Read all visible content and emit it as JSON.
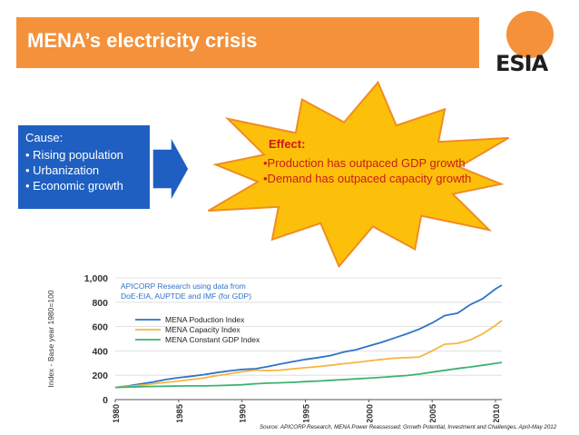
{
  "header": {
    "title": "MENA’s electricity crisis"
  },
  "logo": {
    "text": "ESIA"
  },
  "cause": {
    "title": "Cause:",
    "items": [
      "Rising population",
      "Urbanization",
      "Economic growth"
    ]
  },
  "effect": {
    "title": "Effect:",
    "lines": [
      "•Production has outpaced GDP growth",
      "•Demand has outpaced capacity growth"
    ]
  },
  "colors": {
    "orange": "#f4913a",
    "blue_box": "#1f5fc1",
    "star_fill": "#fcc00a",
    "star_stroke": "#f08c22",
    "effect_text": "#cc1a1a",
    "production": "#2f73c8",
    "capacity": "#f7b63f",
    "gdp": "#3cb371"
  },
  "chart_data": {
    "type": "line",
    "annotation": [
      "APICORP Research using data from",
      "DoE-EIA, AUPTDE and IMF (for GDP)"
    ],
    "ylabel": "Index - Base year 1980=100",
    "ylim": [
      0,
      1000
    ],
    "xlim": [
      1980,
      2010.5
    ],
    "yticks": [
      "0",
      "200",
      "400",
      "600",
      "800",
      "1,000"
    ],
    "xticks": [
      "1980",
      "1985",
      "1990",
      "1995",
      "2000",
      "2005",
      "2010"
    ],
    "x": [
      1980,
      1981,
      1982,
      1983,
      1984,
      1985,
      1986,
      1987,
      1988,
      1989,
      1990,
      1991,
      1992,
      1993,
      1994,
      1995,
      1996,
      1997,
      1998,
      1999,
      2000,
      2001,
      2002,
      2003,
      2004,
      2005,
      2006,
      2007,
      2008,
      2009,
      2010,
      2010.5
    ],
    "series": [
      {
        "name": "MENA Poduction Index",
        "values": [
          100,
          112,
          128,
          145,
          165,
          180,
          192,
          205,
          222,
          236,
          248,
          252,
          270,
          292,
          312,
          330,
          345,
          362,
          390,
          410,
          440,
          470,
          505,
          540,
          580,
          630,
          690,
          710,
          780,
          830,
          910,
          940
        ]
      },
      {
        "name": "MENA Capacity Index",
        "values": [
          100,
          108,
          118,
          130,
          142,
          152,
          165,
          178,
          196,
          212,
          228,
          242,
          238,
          242,
          252,
          262,
          272,
          282,
          295,
          305,
          318,
          330,
          340,
          345,
          350,
          400,
          455,
          462,
          490,
          540,
          610,
          650
        ]
      },
      {
        "name": "MENA Constant GDP Index",
        "values": [
          100,
          103,
          106,
          108,
          110,
          112,
          113,
          113,
          115,
          118,
          122,
          130,
          135,
          138,
          142,
          148,
          152,
          158,
          164,
          170,
          176,
          183,
          190,
          198,
          210,
          225,
          240,
          255,
          268,
          282,
          298,
          305
        ]
      }
    ],
    "source": "Source: APICORP Research, MENA Power Reassessed: Growth Potential, Investment and Challenges, April-May 2012"
  }
}
